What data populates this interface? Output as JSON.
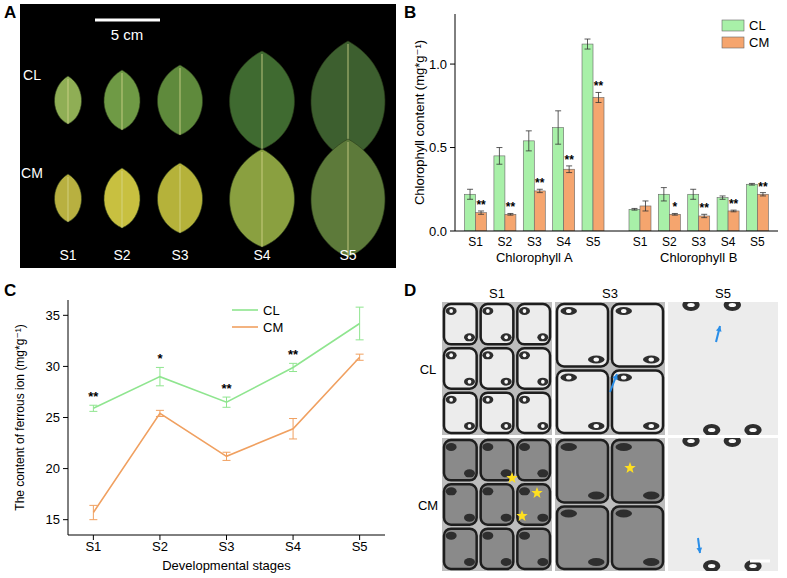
{
  "chart_data": [
    {
      "type": "bar",
      "panel": "B",
      "categories": [
        "S1",
        "S2",
        "S3",
        "S4",
        "S5",
        "S1",
        "S2",
        "S3",
        "S4",
        "S5"
      ],
      "group_labels": [
        "Chlorophyll A",
        "Chlorophyll B"
      ],
      "y_label": "Chlorophyll content (mg*g⁻¹)",
      "series": [
        {
          "name": "CL",
          "color": "#a8f0a8",
          "values": [
            0.22,
            0.45,
            0.54,
            0.62,
            1.12,
            0.13,
            0.22,
            0.22,
            0.2,
            0.28
          ],
          "errors": [
            0.03,
            0.05,
            0.06,
            0.1,
            0.03,
            0.005,
            0.04,
            0.03,
            0.01,
            0.005
          ]
        },
        {
          "name": "CM",
          "color": "#f5a56e",
          "values": [
            0.11,
            0.1,
            0.24,
            0.37,
            0.8,
            0.15,
            0.1,
            0.09,
            0.12,
            0.22
          ],
          "errors": [
            0.01,
            0.005,
            0.01,
            0.02,
            0.03,
            0.03,
            0.005,
            0.01,
            0.005,
            0.01
          ]
        }
      ],
      "significance": [
        "**",
        "**",
        "**",
        "**",
        "**",
        null,
        "*",
        "**",
        "**",
        "**"
      ],
      "ylim": [
        0,
        1.3
      ],
      "yticks": [
        {
          "value": 0,
          "label": "0.0"
        },
        {
          "value": 0.5,
          "label": "0.5"
        },
        {
          "value": 1,
          "label": "1.0"
        }
      ],
      "legend": "upper right"
    },
    {
      "type": "line",
      "panel": "C",
      "categories": [
        "S1",
        "S2",
        "S3",
        "S4",
        "S5"
      ],
      "x_label": "Developmental stages",
      "y_label": "The content of ferrous ion (mg*g⁻¹)",
      "series": [
        {
          "name": "CL",
          "color": "#8fe58f",
          "values": [
            25.9,
            29.0,
            26.5,
            29.9,
            34.2
          ],
          "errors": [
            0.3,
            0.9,
            0.5,
            0.4,
            1.6
          ]
        },
        {
          "name": "CM",
          "color": "#f0a060",
          "values": [
            15.7,
            25.4,
            21.2,
            23.9,
            30.9
          ],
          "errors": [
            0.7,
            0.3,
            0.4,
            1.0,
            0.3
          ]
        }
      ],
      "significance": [
        "**",
        "*",
        "**",
        "**",
        null
      ],
      "ylim": [
        13.5,
        36.5
      ],
      "yticks": [
        15,
        20,
        25,
        30,
        35
      ],
      "legend": "upper center"
    }
  ],
  "panel_a": {
    "panel": "A",
    "scale_label": "5 cm",
    "rows": [
      "CL",
      "CM"
    ],
    "stages": [
      "S1",
      "S2",
      "S3",
      "S4",
      "S5"
    ]
  },
  "panel_d": {
    "panel": "D",
    "columns": [
      "S1",
      "S3",
      "S5"
    ],
    "rows": [
      "CL",
      "CM"
    ]
  }
}
